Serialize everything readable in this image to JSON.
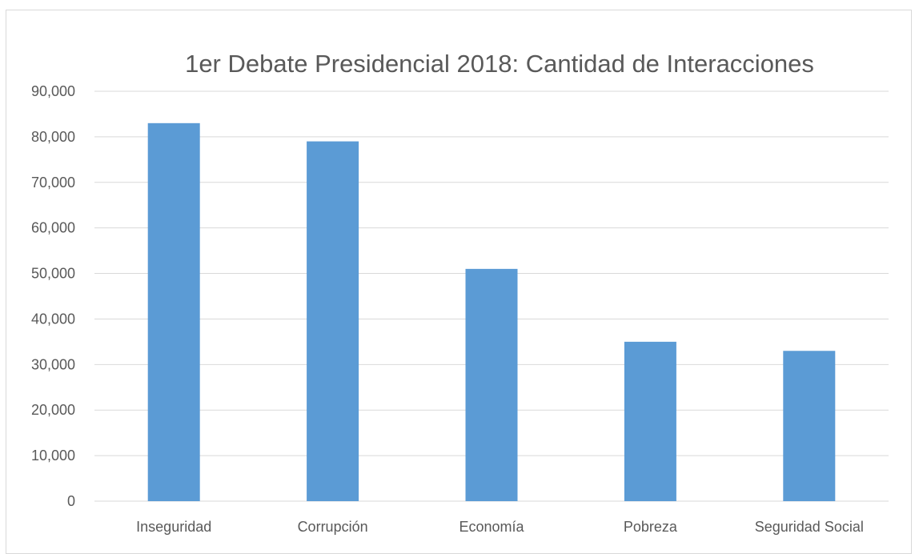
{
  "chart_data": {
    "type": "bar",
    "title": "1er Debate Presidencial 2018: Cantidad de Interacciones",
    "categories": [
      "Inseguridad",
      "Corrupción",
      "Economía",
      "Pobreza",
      "Seguridad Social"
    ],
    "series": [
      {
        "values": [
          83000,
          79000,
          51000,
          35000,
          33000
        ]
      }
    ],
    "ylim": [
      0,
      90000
    ],
    "yticks": [
      "0",
      "10,000",
      "20,000",
      "30,000",
      "40,000",
      "50,000",
      "60,000",
      "70,000",
      "80,000",
      "90,000"
    ],
    "xlabel": "",
    "ylabel": "",
    "grid": true,
    "legend": "none",
    "colors": {
      "bar": "#5b9bd5",
      "grid": "#d9d9d9",
      "text": "#595959",
      "border": "#d9d9d9"
    }
  }
}
